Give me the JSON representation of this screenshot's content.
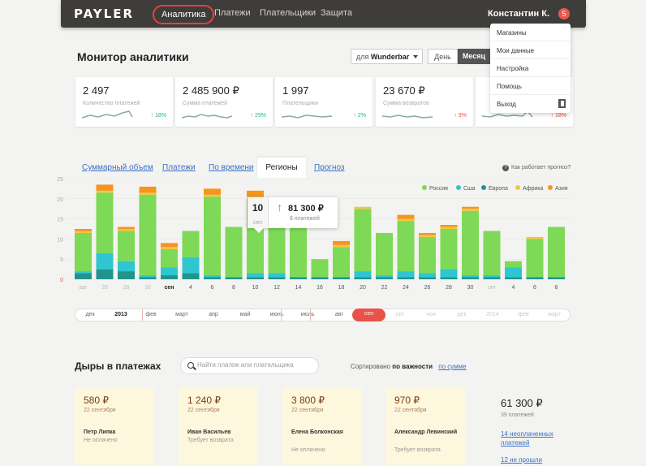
{
  "header": {
    "logo": "PAYLER",
    "nav": [
      "Аналитика",
      "Платежи",
      "Плательщики",
      "Защита"
    ],
    "user": "Константин К.",
    "badge": "5"
  },
  "user_menu": [
    "Магазины",
    "Мои данные",
    "Настройка",
    "Помощь",
    "Выход"
  ],
  "page": {
    "title": "Монитор аналитики",
    "shop_prefix": "для",
    "shop": "Wunderbar",
    "period_day": "День",
    "period_month": "Месяц"
  },
  "stats": [
    {
      "value": "2 497",
      "label": "Количество платежей",
      "pct": "↑ 18%",
      "dir": "up"
    },
    {
      "value": "2 485 900 ₽",
      "label": "Сумма платежей",
      "pct": "↑ 29%",
      "dir": "up"
    },
    {
      "value": "1 997",
      "label": "Плательщики",
      "pct": "↑ 2%",
      "dir": "up"
    },
    {
      "value": "23 670 ₽",
      "label": "Сумма возвратов",
      "pct": "↑ 9%",
      "dir": "down"
    },
    {
      "value": "",
      "label": "",
      "pct": "↑ 18%",
      "dir": "down"
    }
  ],
  "tabs": [
    "Суммарный объем",
    "Платежи",
    "По времени",
    "Регионы",
    "Прогноз"
  ],
  "help_text": "Как работает прогноз?",
  "colors": {
    "russia": "#7ed957",
    "usa": "#2fc6d2",
    "europe": "#21948e",
    "africa": "#f3c63f",
    "asia": "#f7941e",
    "accent": "#e8524a"
  },
  "chart_data": {
    "type": "bar",
    "stacked": true,
    "ylim": [
      0,
      25
    ],
    "yticks": [
      0,
      5,
      10,
      15,
      20,
      25
    ],
    "categories": [
      "авг",
      "28",
      "28",
      "30",
      "сен",
      "4",
      "6",
      "8",
      "10",
      "12",
      "14",
      "16",
      "18",
      "20",
      "22",
      "24",
      "26",
      "28",
      "30",
      "окт",
      "4",
      "6",
      "8"
    ],
    "series": [
      {
        "name": "Европа",
        "color": "#21948e",
        "values": [
          1.5,
          2.5,
          2,
          0.5,
          1,
          1.5,
          0.5,
          0.5,
          0.5,
          0.5,
          0.5,
          0.5,
          0.5,
          0.5,
          0.5,
          0.5,
          0.5,
          0.5,
          0.5,
          0.5,
          0.5,
          0.5,
          0.5
        ]
      },
      {
        "name": "Сша",
        "color": "#2fc6d2",
        "values": [
          0.5,
          4,
          2.5,
          0.5,
          2,
          4,
          0.5,
          0,
          1,
          1,
          0,
          0,
          0,
          1.5,
          0.5,
          1.5,
          1,
          2,
          0.5,
          0.5,
          2.5,
          0,
          0
        ]
      },
      {
        "name": "Россия",
        "color": "#7ed957",
        "values": [
          9.5,
          15,
          7.5,
          20,
          4.5,
          6.5,
          19.5,
          12.5,
          18.5,
          12.5,
          12.5,
          4.5,
          7.5,
          15.5,
          10.5,
          12.5,
          9,
          10,
          16,
          11,
          1.5,
          9.5,
          12.5
        ]
      },
      {
        "name": "Африка",
        "color": "#f3c63f",
        "values": [
          0.5,
          0.5,
          0.5,
          0.5,
          0.5,
          0,
          0.5,
          0,
          0.5,
          0,
          0,
          0,
          0.5,
          0.5,
          0,
          0.5,
          0.5,
          0.5,
          0.5,
          0,
          0,
          0.5,
          0
        ]
      },
      {
        "name": "Азия",
        "color": "#f7941e",
        "values": [
          0.5,
          1.5,
          0.5,
          1.5,
          1,
          0,
          1.5,
          0,
          1.5,
          0,
          0,
          0,
          1,
          0,
          0,
          1,
          0.5,
          0.5,
          0.5,
          0,
          0,
          0,
          0
        ]
      }
    ],
    "bold_categories": [
      "сен"
    ]
  },
  "tooltip": {
    "day": "10",
    "month": "сен",
    "value": "81 300 ₽",
    "sub": "8 платежей"
  },
  "timeline": [
    "дек",
    "2013",
    "фев",
    "март",
    "апр",
    "май",
    "июнь",
    "июль",
    "авг",
    "сен",
    "окт",
    "ноя",
    "дек",
    "2014",
    "фев",
    "март"
  ],
  "gaps": {
    "title": "Дыры в платежах",
    "search_placeholder": "Найти платеж или плательщика",
    "sort_label": "Сортировано",
    "sort_active": "по важности",
    "sort_link": "по сумме",
    "items": [
      {
        "amount": "580 ₽",
        "date": "22 сентября",
        "name": "Петр Липка",
        "status": "Не оплачено"
      },
      {
        "amount": "1 240 ₽",
        "date": "22 сентября",
        "name": "Иван Васильев",
        "status": "Требует возврата"
      },
      {
        "amount": "3 800 ₽",
        "date": "22 сентября",
        "name": "Елена Болконская",
        "status": "Не оплачено"
      },
      {
        "amount": "970 ₽",
        "date": "22 сентября",
        "name": "Александр Левинский",
        "status": "Требует возврата"
      }
    ],
    "total": "61 300 ₽",
    "total_sub": "39 платежей",
    "link_unpaid": "14 неоплаченных платежей",
    "link_not_sent": "12 не прошли"
  }
}
